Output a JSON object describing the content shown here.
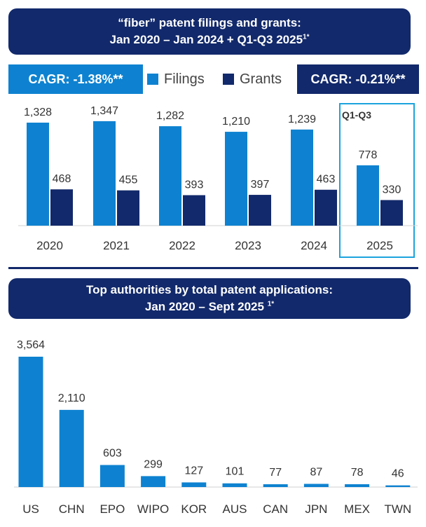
{
  "top_banner": {
    "line1": "“fiber” patent filings and grants:",
    "line2": "Jan 2020 – Jan 2024 + Q1-Q3 2025",
    "footnote": "1*"
  },
  "cagr": {
    "filings": "CAGR: -1.38%**",
    "grants": "CAGR: -0.21%**"
  },
  "colors": {
    "filings": "#0e82d0",
    "grants": "#12296b",
    "highlight_box": "#1aa3dd"
  },
  "partial_year_label": "Q1-Q3",
  "bottom_banner": {
    "line1": "Top authorities by total patent applications:",
    "line2": "Jan 2020 – Sept 2025",
    "footnote": "1*"
  },
  "chart_data": [
    {
      "type": "bar",
      "title": "“fiber” patent filings and grants: Jan 2020 – Jan 2024 + Q1-Q3 2025",
      "categories": [
        "2020",
        "2021",
        "2022",
        "2023",
        "2024",
        "2025"
      ],
      "series": [
        {
          "name": "Filings",
          "values": [
            1328,
            1347,
            1282,
            1210,
            1239,
            778
          ],
          "labels": [
            "1,328",
            "1,347",
            "1,282",
            "1,210",
            "1,239",
            "778"
          ]
        },
        {
          "name": "Grants",
          "values": [
            468,
            455,
            393,
            397,
            463,
            330
          ],
          "labels": [
            "468",
            "455",
            "393",
            "397",
            "463",
            "330"
          ]
        }
      ],
      "ylim": [
        0,
        1400
      ],
      "legend": "top-center"
    },
    {
      "type": "bar",
      "title": "Top authorities by total patent applications: Jan 2020 – Sept 2025",
      "categories": [
        "US",
        "CHN",
        "EPO",
        "WIPO",
        "KOR",
        "AUS",
        "CAN",
        "JPN",
        "MEX",
        "TWN"
      ],
      "values": [
        3564,
        2110,
        603,
        299,
        127,
        101,
        77,
        87,
        78,
        46
      ],
      "labels": [
        "3,564",
        "2,110",
        "603",
        "299",
        "127",
        "101",
        "77",
        "87",
        "78",
        "46"
      ],
      "ylim": [
        0,
        3600
      ]
    }
  ]
}
